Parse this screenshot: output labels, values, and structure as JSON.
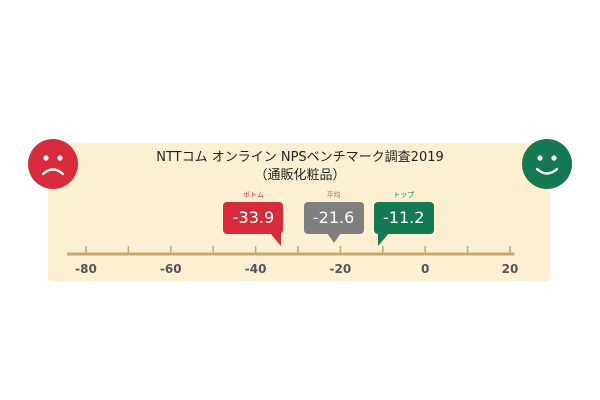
{
  "title_line1": "NTTコム オンライン NPSベンチマーク調査2019",
  "title_line2": "（通販化粧品）",
  "chart_data": {
    "type": "number-line",
    "title": "NTTコム オンライン NPSベンチマーク調査2019（通販化粧品）",
    "xlim": [
      -84,
      22
    ],
    "ticks": [
      -80,
      -60,
      -40,
      -20,
      0,
      20
    ],
    "markers": [
      {
        "label": "ボトム",
        "value": -33.9,
        "display": "-33.9",
        "color": "#d62b3b"
      },
      {
        "label": "平均",
        "value": -21.6,
        "display": "-21.6",
        "color": "#7f7f7f"
      },
      {
        "label": "トップ",
        "value": -11.2,
        "display": "-11.2",
        "color": "#157a52"
      }
    ]
  },
  "icons": {
    "left": "sad-face-icon",
    "right": "happy-face-icon",
    "left_color": "#d62b3b",
    "right_color": "#157a52"
  },
  "colors": {
    "panel": "#fdf0d2",
    "axis": "#c9a96a",
    "tick_label": "#555555"
  }
}
